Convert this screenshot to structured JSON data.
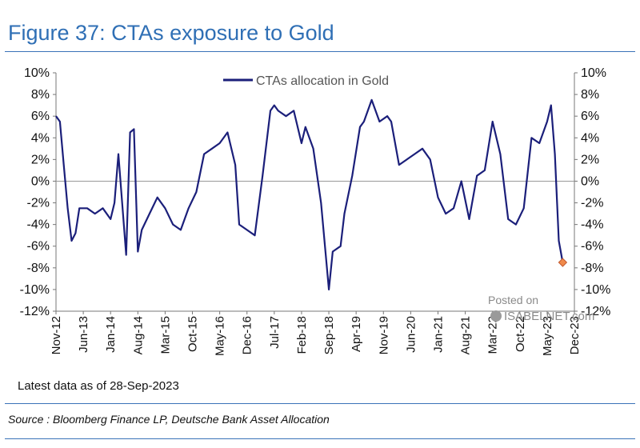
{
  "header": {
    "title": "Figure 37: CTAs exposure to Gold"
  },
  "footer": {
    "latest": "Latest data as of 28-Sep-2023",
    "source": "Source : Bloomberg Finance LP, Deutsche Bank Asset Allocation"
  },
  "watermark": {
    "line1": "Posted on",
    "line2": "ISABELNET.com"
  },
  "colors": {
    "series": "#1b1f7a",
    "last_point": "#f08a4b",
    "title": "#2f6fb5"
  },
  "chart_data": {
    "type": "line",
    "title": "",
    "xlabel": "",
    "ylabel": "",
    "ylim": [
      -12,
      10
    ],
    "y_unit": "%",
    "y_ticks": [
      -12,
      -10,
      -8,
      -6,
      -4,
      -2,
      0,
      2,
      4,
      6,
      8,
      10
    ],
    "y_tick_labels_left": [
      "10%",
      "8%",
      "6%",
      "4%",
      "2%",
      "0%",
      "-2%",
      "-4%",
      "-6%",
      "-8%",
      "-10%",
      "-12%"
    ],
    "y_tick_labels_right": [
      "10%",
      "8%",
      "6%",
      "4%",
      "2%",
      "0%",
      "-2%",
      "-4%",
      "-6%",
      "-8%",
      "-10%",
      "-12%"
    ],
    "x_tick_labels": [
      "Nov-12",
      "Jun-13",
      "Jan-14",
      "Aug-14",
      "Mar-15",
      "Oct-15",
      "May-16",
      "Dec-16",
      "Jul-17",
      "Feb-18",
      "Sep-18",
      "Apr-19",
      "Nov-19",
      "Jun-20",
      "Jan-21",
      "Aug-21",
      "Mar-22",
      "Oct-22",
      "May-23",
      "Dec-23"
    ],
    "x_range": [
      "2012-11",
      "2023-12"
    ],
    "legend": {
      "position": "top-center",
      "entries": [
        "CTAs allocation in Gold"
      ]
    },
    "series": [
      {
        "name": "CTAs allocation in Gold",
        "x": [
          "2012-11",
          "2012-12",
          "2013-01",
          "2013-02",
          "2013-03",
          "2013-04",
          "2013-05",
          "2013-07",
          "2013-09",
          "2013-11",
          "2014-01",
          "2014-02",
          "2014-03",
          "2014-05",
          "2014-06",
          "2014-07",
          "2014-08",
          "2014-09",
          "2014-11",
          "2015-01",
          "2015-03",
          "2015-05",
          "2015-07",
          "2015-09",
          "2015-11",
          "2016-01",
          "2016-03",
          "2016-05",
          "2016-07",
          "2016-09",
          "2016-10",
          "2016-12",
          "2017-02",
          "2017-04",
          "2017-06",
          "2017-07",
          "2017-08",
          "2017-10",
          "2017-12",
          "2018-02",
          "2018-03",
          "2018-05",
          "2018-07",
          "2018-09",
          "2018-10",
          "2018-12",
          "2019-01",
          "2019-03",
          "2019-05",
          "2019-06",
          "2019-08",
          "2019-10",
          "2019-12",
          "2020-01",
          "2020-03",
          "2020-05",
          "2020-07",
          "2020-09",
          "2020-11",
          "2021-01",
          "2021-03",
          "2021-05",
          "2021-07",
          "2021-09",
          "2021-11",
          "2022-01",
          "2022-03",
          "2022-05",
          "2022-07",
          "2022-09",
          "2022-11",
          "2023-01",
          "2023-03",
          "2023-05",
          "2023-06",
          "2023-07",
          "2023-08",
          "2023-09"
        ],
        "values": [
          6.0,
          5.5,
          1.5,
          -2.5,
          -5.5,
          -4.8,
          -2.5,
          -2.5,
          -3.0,
          -2.5,
          -3.5,
          -2.0,
          2.5,
          -6.8,
          4.5,
          4.8,
          -6.5,
          -4.5,
          -3.0,
          -1.5,
          -2.5,
          -4.0,
          -4.5,
          -2.5,
          -1.0,
          2.5,
          3.0,
          3.5,
          4.5,
          1.5,
          -4.0,
          -4.5,
          -5.0,
          0.5,
          6.5,
          7.0,
          6.5,
          6.0,
          6.5,
          3.5,
          5.0,
          3.0,
          -2.0,
          -10.0,
          -6.5,
          -6.0,
          -3.0,
          0.5,
          5.0,
          5.5,
          7.5,
          5.5,
          6.0,
          5.5,
          1.5,
          2.0,
          2.5,
          3.0,
          2.0,
          -1.5,
          -3.0,
          -2.5,
          0.0,
          -3.5,
          0.5,
          1.0,
          5.5,
          2.5,
          -3.5,
          -4.0,
          -2.5,
          4.0,
          3.5,
          5.5,
          7.0,
          2.5,
          -5.5,
          -7.5
        ]
      }
    ],
    "last_point": {
      "x": "2023-09",
      "value": -7.5
    }
  }
}
